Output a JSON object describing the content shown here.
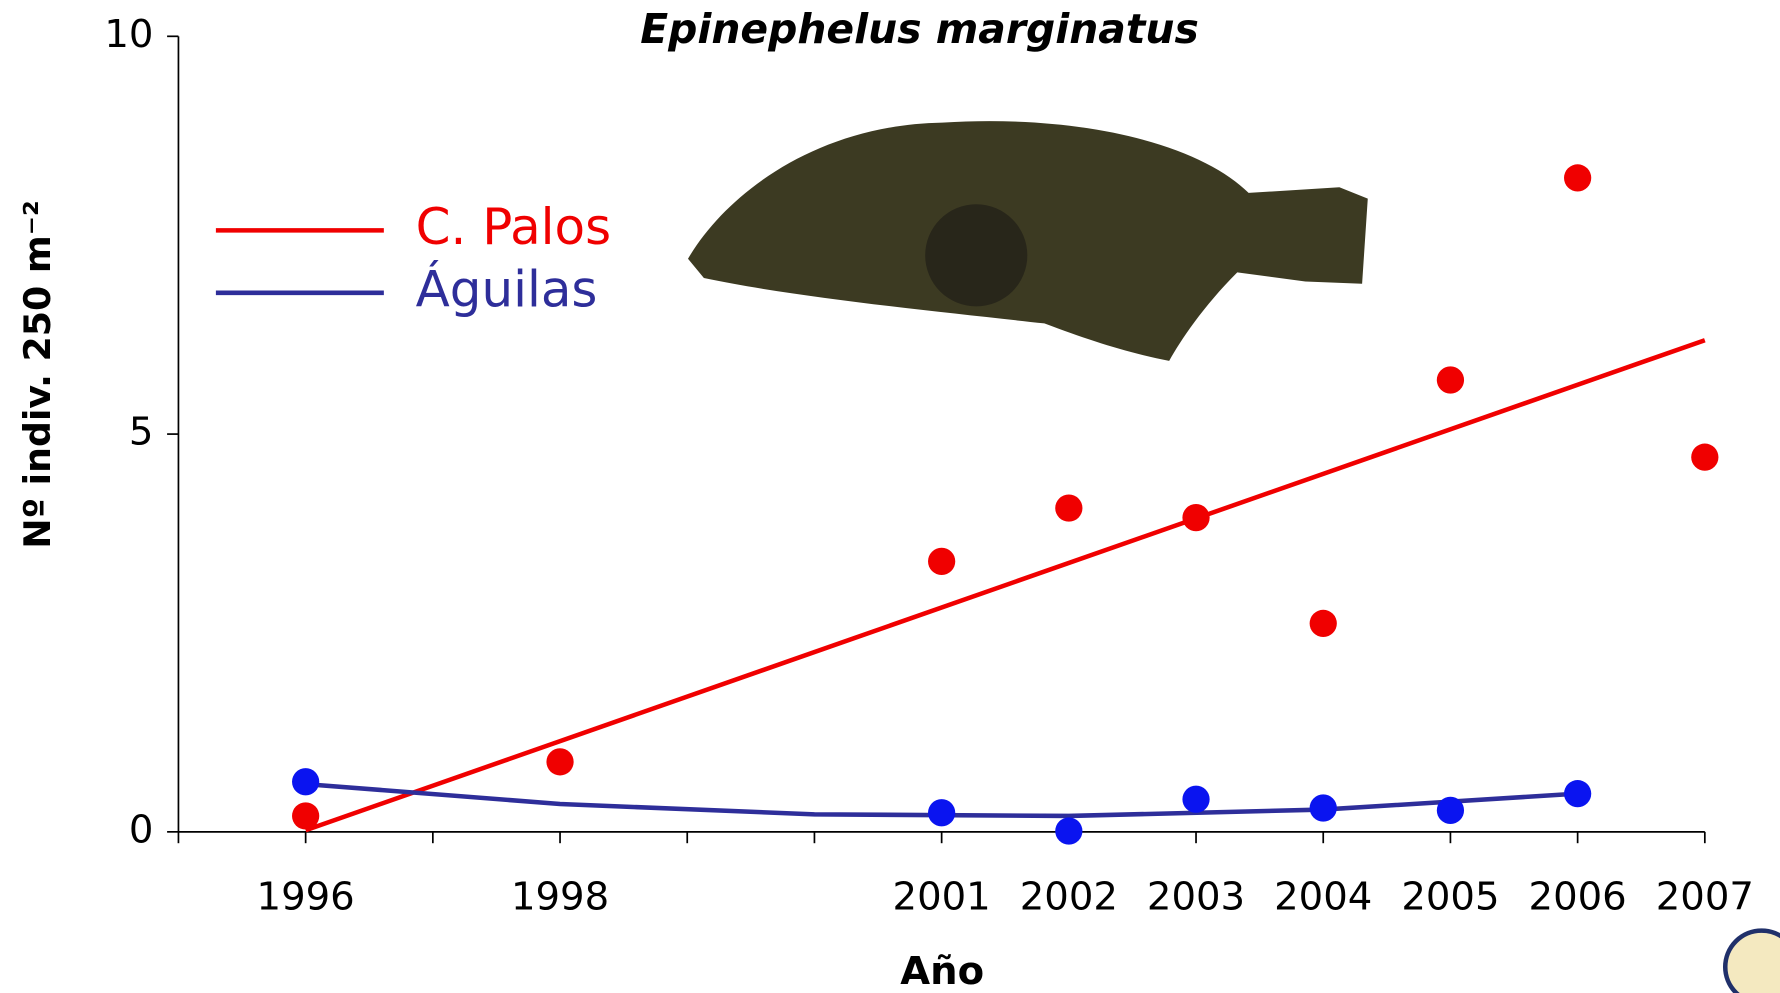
{
  "chart_data": {
    "type": "scatter",
    "title": "Epinephelus marginatus",
    "x_label": "Año",
    "y_label": "Nº indiv. 250 m⁻²",
    "xlim": [
      1995,
      2007
    ],
    "xticks": [
      1996,
      1998,
      2001,
      2002,
      2003,
      2004,
      2005,
      2006,
      2007
    ],
    "xtick_marks": [
      1995,
      1996,
      1997,
      1998,
      1999,
      2000,
      2001,
      2002,
      2003,
      2004,
      2005,
      2006,
      2007
    ],
    "ylim": [
      0,
      10
    ],
    "yticks": [
      0,
      5,
      10
    ],
    "series": [
      {
        "name": "C. Palos",
        "color": "#f00000",
        "x": [
          1996,
          1998,
          2001,
          2002,
          2003,
          2004,
          2005,
          2006,
          2007
        ],
        "values": [
          0.2,
          0.88,
          3.4,
          4.07,
          3.95,
          2.62,
          5.68,
          8.22,
          4.71
        ],
        "trend": {
          "x": [
            1996,
            2007
          ],
          "values": [
            0.02,
            6.18
          ]
        }
      },
      {
        "name": "Águilas",
        "color": "#0a14f0",
        "line_color": "#2e2e9a",
        "x": [
          1996,
          2001,
          2002,
          2003,
          2004,
          2005,
          2006
        ],
        "values": [
          0.63,
          0.24,
          0.01,
          0.41,
          0.3,
          0.27,
          0.48
        ],
        "trend": {
          "x": [
            1996,
            1998,
            2000,
            2002,
            2004,
            2006
          ],
          "values": [
            0.6,
            0.35,
            0.22,
            0.2,
            0.28,
            0.48
          ]
        }
      }
    ]
  }
}
